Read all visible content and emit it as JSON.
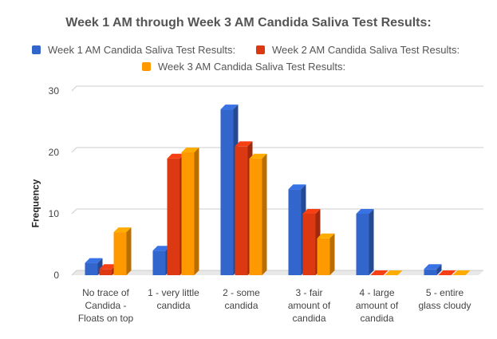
{
  "chart_data": {
    "type": "bar",
    "title": "Week 1 AM through Week 3 AM Candida Saliva Test Results:",
    "xlabel": "",
    "ylabel": "Frequency",
    "ylim": [
      0,
      30
    ],
    "yticks": [
      0,
      10,
      20,
      30
    ],
    "grid": true,
    "legend_position": "top",
    "categories": [
      [
        "No trace of",
        "Candida -",
        "Floats on top"
      ],
      [
        "1 - very little",
        "candida"
      ],
      [
        "2 - some",
        "candida"
      ],
      [
        "3 - fair",
        "amount of",
        "candida"
      ],
      [
        "4 - large",
        "amount of",
        "candida"
      ],
      [
        "5 - entire",
        "glass cloudy"
      ]
    ],
    "series": [
      {
        "name": "Week 1 AM Candida Saliva Test Results:",
        "color": "#3366cc",
        "values": [
          2,
          4,
          27,
          14,
          10,
          1
        ]
      },
      {
        "name": "Week 2 AM Candida Saliva Test Results:",
        "color": "#dc3912",
        "values": [
          1,
          19,
          21,
          10,
          0,
          0
        ]
      },
      {
        "name": "Week 3 AM Candida Saliva Test Results:",
        "color": "#ff9900",
        "values": [
          7,
          20,
          19,
          6,
          0,
          0
        ]
      }
    ]
  }
}
